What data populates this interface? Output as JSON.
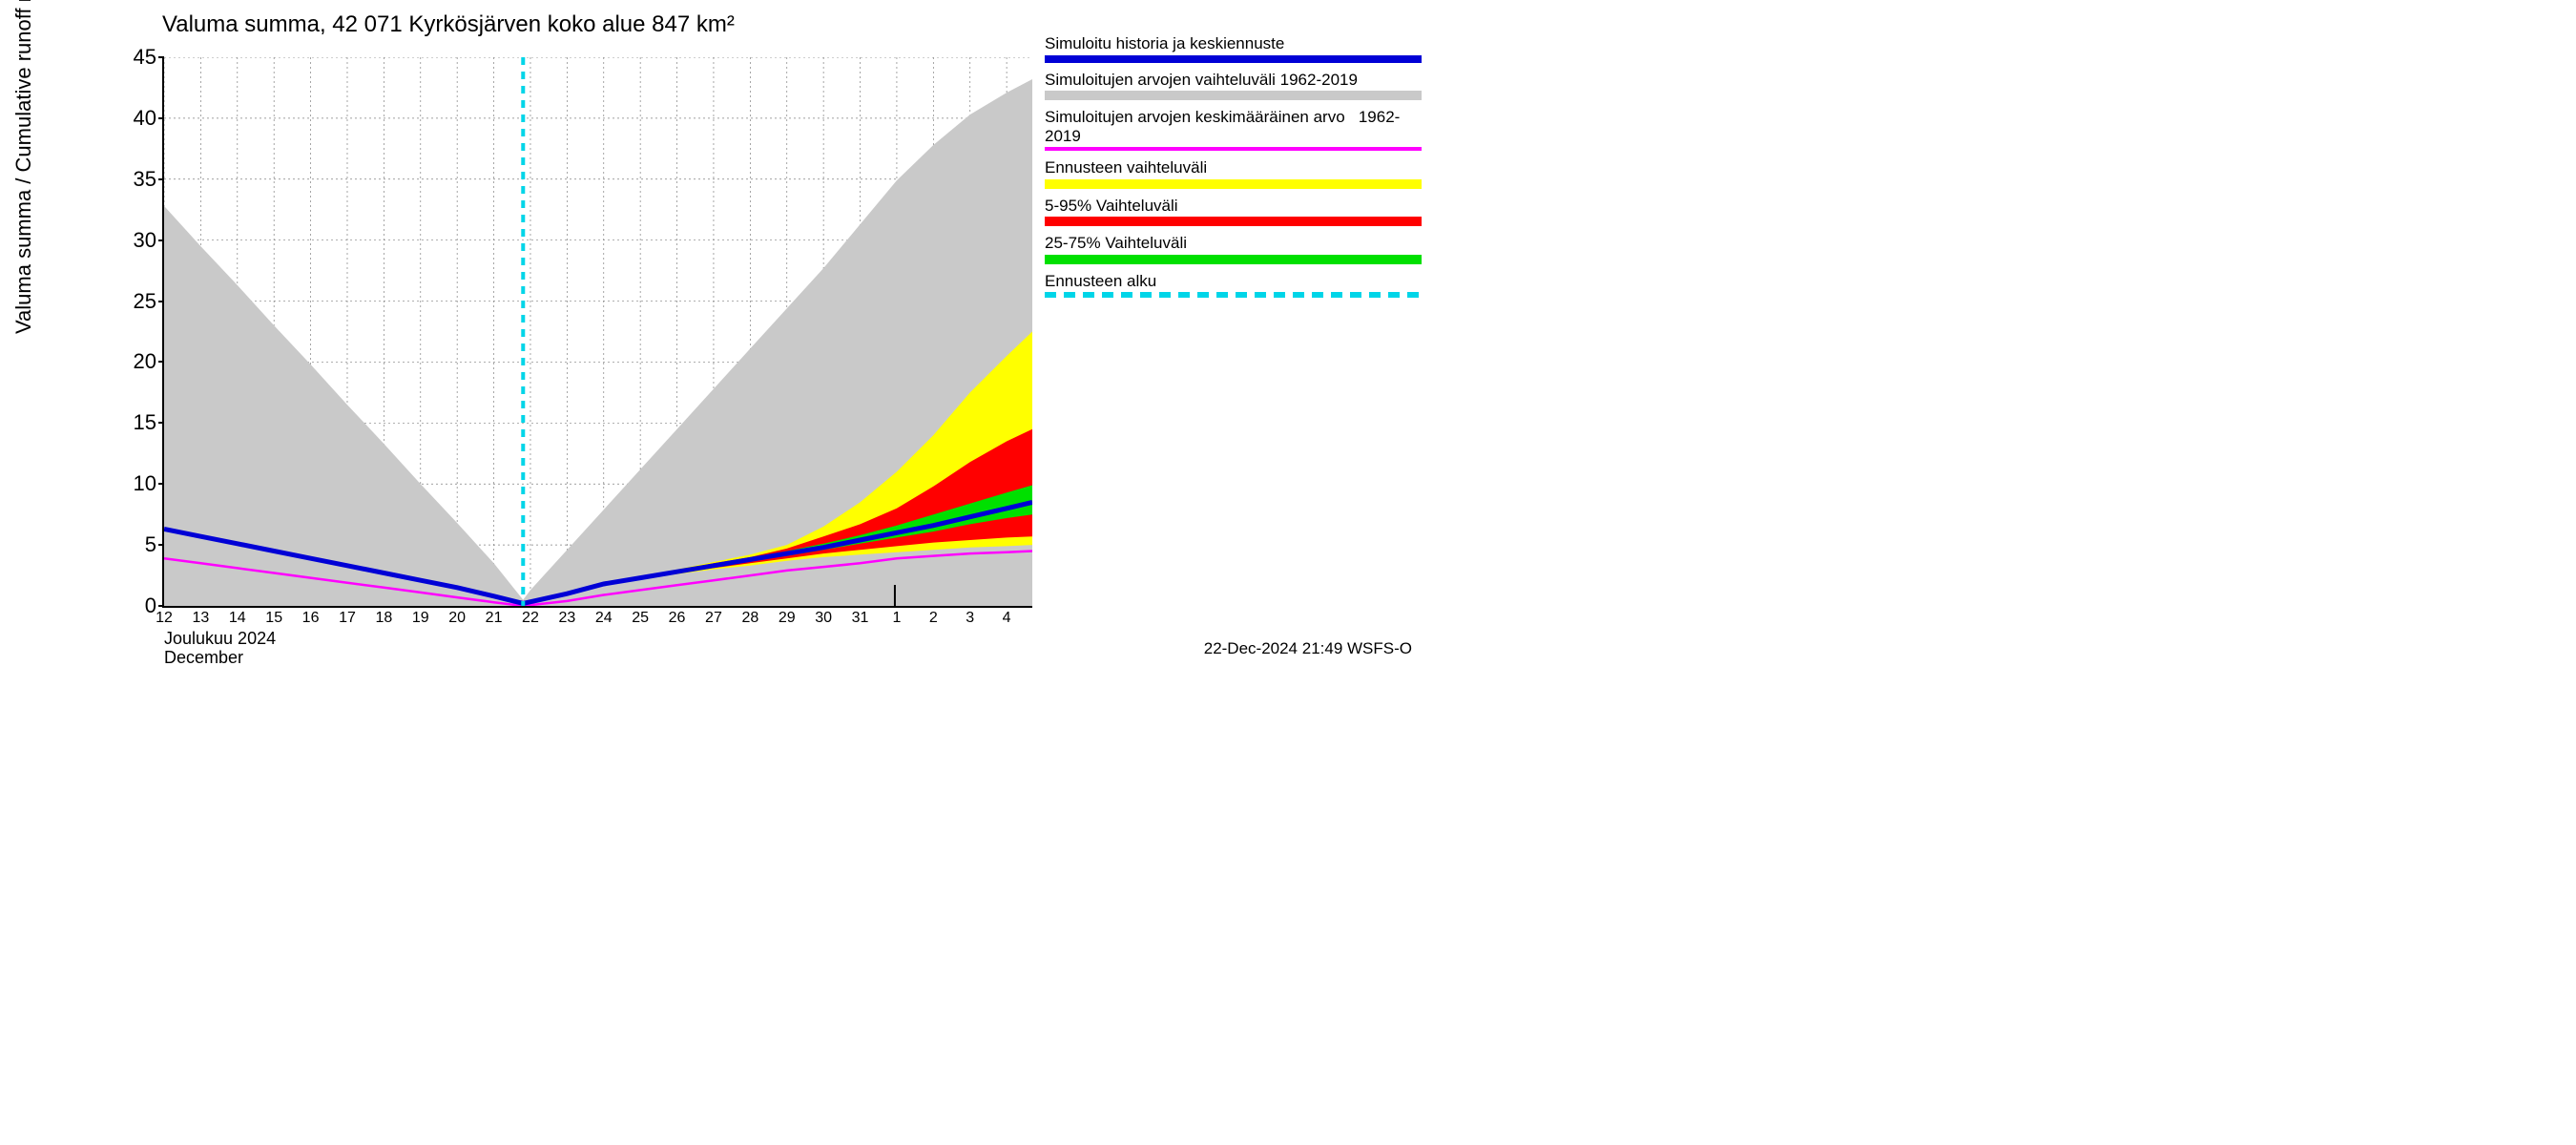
{
  "chart": {
    "type": "area-line",
    "title": "Valuma summa, 42 071 Kyrkösjärven koko alue 847 km²",
    "y_axis_label": "Valuma summa / Cumulative runoff     mm",
    "month_label_fi": "Joulukuu  2024",
    "month_label_en": "December",
    "background_color": "#ffffff",
    "grid_color": "#808080",
    "axis_color": "#000000",
    "title_fontsize": 24,
    "axis_label_fontsize": 22,
    "tick_fontsize_y": 22,
    "tick_fontsize_x": 16,
    "x": {
      "min": 12,
      "max": 35.7,
      "month_break": 32,
      "ticks": [
        12,
        13,
        14,
        15,
        16,
        17,
        18,
        19,
        20,
        21,
        22,
        23,
        24,
        25,
        26,
        27,
        28,
        29,
        30,
        31,
        32,
        33,
        34,
        35
      ],
      "tick_labels": [
        "12",
        "13",
        "14",
        "15",
        "16",
        "17",
        "18",
        "19",
        "20",
        "21",
        "22",
        "23",
        "24",
        "25",
        "26",
        "27",
        "28",
        "29",
        "30",
        "31",
        "1",
        "2",
        "3",
        "4"
      ]
    },
    "y": {
      "min": 0,
      "max": 45,
      "ticks": [
        0,
        5,
        10,
        15,
        20,
        25,
        30,
        35,
        40,
        45
      ]
    },
    "forecast_start_x": 21.8,
    "series": {
      "hist_range_upper": [
        {
          "x": 12,
          "y": 32.8
        },
        {
          "x": 13,
          "y": 29.5
        },
        {
          "x": 14,
          "y": 26.3
        },
        {
          "x": 15,
          "y": 23.0
        },
        {
          "x": 16,
          "y": 19.8
        },
        {
          "x": 17,
          "y": 16.5
        },
        {
          "x": 18,
          "y": 13.3
        },
        {
          "x": 19,
          "y": 10.0
        },
        {
          "x": 20,
          "y": 6.8
        },
        {
          "x": 21,
          "y": 3.5
        },
        {
          "x": 21.8,
          "y": 0.5
        },
        {
          "x": 22,
          "y": 1.3
        },
        {
          "x": 23,
          "y": 4.6
        },
        {
          "x": 24,
          "y": 7.9
        },
        {
          "x": 25,
          "y": 11.2
        },
        {
          "x": 26,
          "y": 14.5
        },
        {
          "x": 27,
          "y": 17.8
        },
        {
          "x": 28,
          "y": 21.1
        },
        {
          "x": 29,
          "y": 24.4
        },
        {
          "x": 30,
          "y": 27.7
        },
        {
          "x": 31,
          "y": 31.3
        },
        {
          "x": 32,
          "y": 34.9
        },
        {
          "x": 33,
          "y": 37.8
        },
        {
          "x": 34,
          "y": 40.3
        },
        {
          "x": 35,
          "y": 42.1
        },
        {
          "x": 35.7,
          "y": 43.2
        }
      ],
      "hist_range_lower": [
        {
          "x": 12,
          "y": 0
        },
        {
          "x": 35.7,
          "y": 0
        }
      ],
      "hist_mean": [
        {
          "x": 12,
          "y": 3.9
        },
        {
          "x": 13,
          "y": 3.5
        },
        {
          "x": 14,
          "y": 3.1
        },
        {
          "x": 15,
          "y": 2.7
        },
        {
          "x": 16,
          "y": 2.3
        },
        {
          "x": 17,
          "y": 1.9
        },
        {
          "x": 18,
          "y": 1.5
        },
        {
          "x": 19,
          "y": 1.1
        },
        {
          "x": 20,
          "y": 0.7
        },
        {
          "x": 21,
          "y": 0.3
        },
        {
          "x": 21.8,
          "y": 0.0
        },
        {
          "x": 23,
          "y": 0.4
        },
        {
          "x": 24,
          "y": 0.9
        },
        {
          "x": 25,
          "y": 1.3
        },
        {
          "x": 26,
          "y": 1.7
        },
        {
          "x": 27,
          "y": 2.1
        },
        {
          "x": 28,
          "y": 2.5
        },
        {
          "x": 29,
          "y": 2.9
        },
        {
          "x": 30,
          "y": 3.2
        },
        {
          "x": 31,
          "y": 3.5
        },
        {
          "x": 32,
          "y": 3.9
        },
        {
          "x": 33,
          "y": 4.1
        },
        {
          "x": 34,
          "y": 4.3
        },
        {
          "x": 35,
          "y": 4.4
        },
        {
          "x": 35.7,
          "y": 4.5
        }
      ],
      "simulated": [
        {
          "x": 12,
          "y": 6.3
        },
        {
          "x": 13,
          "y": 5.7
        },
        {
          "x": 14,
          "y": 5.1
        },
        {
          "x": 15,
          "y": 4.5
        },
        {
          "x": 16,
          "y": 3.9
        },
        {
          "x": 17,
          "y": 3.3
        },
        {
          "x": 18,
          "y": 2.7
        },
        {
          "x": 19,
          "y": 2.1
        },
        {
          "x": 20,
          "y": 1.5
        },
        {
          "x": 21,
          "y": 0.8
        },
        {
          "x": 21.8,
          "y": 0.2
        },
        {
          "x": 23,
          "y": 1.0
        },
        {
          "x": 24,
          "y": 1.8
        },
        {
          "x": 25,
          "y": 2.3
        },
        {
          "x": 26,
          "y": 2.8
        },
        {
          "x": 27,
          "y": 3.3
        },
        {
          "x": 28,
          "y": 3.8
        },
        {
          "x": 29,
          "y": 4.3
        },
        {
          "x": 30,
          "y": 4.8
        },
        {
          "x": 31,
          "y": 5.4
        },
        {
          "x": 32,
          "y": 6.0
        },
        {
          "x": 33,
          "y": 6.6
        },
        {
          "x": 34,
          "y": 7.3
        },
        {
          "x": 35,
          "y": 8.0
        },
        {
          "x": 35.7,
          "y": 8.5
        }
      ],
      "forecast_full_upper": [
        {
          "x": 21.8,
          "y": 0.2
        },
        {
          "x": 23,
          "y": 1.0
        },
        {
          "x": 24,
          "y": 1.8
        },
        {
          "x": 25,
          "y": 2.4
        },
        {
          "x": 26,
          "y": 3.0
        },
        {
          "x": 27,
          "y": 3.6
        },
        {
          "x": 28,
          "y": 4.2
        },
        {
          "x": 29,
          "y": 5.0
        },
        {
          "x": 30,
          "y": 6.5
        },
        {
          "x": 31,
          "y": 8.5
        },
        {
          "x": 32,
          "y": 11.0
        },
        {
          "x": 33,
          "y": 14.0
        },
        {
          "x": 34,
          "y": 17.5
        },
        {
          "x": 35,
          "y": 20.5
        },
        {
          "x": 35.7,
          "y": 22.5
        }
      ],
      "forecast_full_lower": [
        {
          "x": 21.8,
          "y": 0.2
        },
        {
          "x": 23,
          "y": 1.0
        },
        {
          "x": 24,
          "y": 1.7
        },
        {
          "x": 25,
          "y": 2.2
        },
        {
          "x": 26,
          "y": 2.6
        },
        {
          "x": 27,
          "y": 3.0
        },
        {
          "x": 28,
          "y": 3.3
        },
        {
          "x": 29,
          "y": 3.7
        },
        {
          "x": 30,
          "y": 4.0
        },
        {
          "x": 31,
          "y": 4.2
        },
        {
          "x": 32,
          "y": 4.4
        },
        {
          "x": 33,
          "y": 4.6
        },
        {
          "x": 34,
          "y": 4.8
        },
        {
          "x": 35,
          "y": 4.9
        },
        {
          "x": 35.7,
          "y": 5.0
        }
      ],
      "forecast_5_95_upper": [
        {
          "x": 21.8,
          "y": 0.2
        },
        {
          "x": 23,
          "y": 1.0
        },
        {
          "x": 24,
          "y": 1.8
        },
        {
          "x": 25,
          "y": 2.4
        },
        {
          "x": 26,
          "y": 2.9
        },
        {
          "x": 27,
          "y": 3.5
        },
        {
          "x": 28,
          "y": 4.0
        },
        {
          "x": 29,
          "y": 4.7
        },
        {
          "x": 30,
          "y": 5.7
        },
        {
          "x": 31,
          "y": 6.7
        },
        {
          "x": 32,
          "y": 8.0
        },
        {
          "x": 33,
          "y": 9.8
        },
        {
          "x": 34,
          "y": 11.8
        },
        {
          "x": 35,
          "y": 13.5
        },
        {
          "x": 35.7,
          "y": 14.5
        }
      ],
      "forecast_5_95_lower": [
        {
          "x": 21.8,
          "y": 0.2
        },
        {
          "x": 23,
          "y": 1.0
        },
        {
          "x": 24,
          "y": 1.7
        },
        {
          "x": 25,
          "y": 2.2
        },
        {
          "x": 26,
          "y": 2.7
        },
        {
          "x": 27,
          "y": 3.1
        },
        {
          "x": 28,
          "y": 3.5
        },
        {
          "x": 29,
          "y": 3.9
        },
        {
          "x": 30,
          "y": 4.3
        },
        {
          "x": 31,
          "y": 4.6
        },
        {
          "x": 32,
          "y": 4.9
        },
        {
          "x": 33,
          "y": 5.2
        },
        {
          "x": 34,
          "y": 5.4
        },
        {
          "x": 35,
          "y": 5.6
        },
        {
          "x": 35.7,
          "y": 5.7
        }
      ],
      "forecast_25_75_upper": [
        {
          "x": 21.8,
          "y": 0.2
        },
        {
          "x": 23,
          "y": 1.0
        },
        {
          "x": 24,
          "y": 1.8
        },
        {
          "x": 25,
          "y": 2.3
        },
        {
          "x": 26,
          "y": 2.8
        },
        {
          "x": 27,
          "y": 3.4
        },
        {
          "x": 28,
          "y": 3.9
        },
        {
          "x": 29,
          "y": 4.5
        },
        {
          "x": 30,
          "y": 5.1
        },
        {
          "x": 31,
          "y": 5.8
        },
        {
          "x": 32,
          "y": 6.6
        },
        {
          "x": 33,
          "y": 7.5
        },
        {
          "x": 34,
          "y": 8.4
        },
        {
          "x": 35,
          "y": 9.3
        },
        {
          "x": 35.7,
          "y": 9.9
        }
      ],
      "forecast_25_75_lower": [
        {
          "x": 21.8,
          "y": 0.2
        },
        {
          "x": 23,
          "y": 1.0
        },
        {
          "x": 24,
          "y": 1.8
        },
        {
          "x": 25,
          "y": 2.3
        },
        {
          "x": 26,
          "y": 2.8
        },
        {
          "x": 27,
          "y": 3.2
        },
        {
          "x": 28,
          "y": 3.7
        },
        {
          "x": 29,
          "y": 4.1
        },
        {
          "x": 30,
          "y": 4.6
        },
        {
          "x": 31,
          "y": 5.1
        },
        {
          "x": 32,
          "y": 5.6
        },
        {
          "x": 33,
          "y": 6.1
        },
        {
          "x": 34,
          "y": 6.7
        },
        {
          "x": 35,
          "y": 7.2
        },
        {
          "x": 35.7,
          "y": 7.5
        }
      ]
    },
    "colors": {
      "hist_range": "#c9c9c9",
      "hist_mean": "#ff00ff",
      "simulated": "#0000d6",
      "forecast_full": "#ffff00",
      "forecast_5_95": "#ff0000",
      "forecast_25_75": "#00e000",
      "forecast_start": "#00d5e8"
    },
    "line_widths": {
      "simulated": 5,
      "hist_mean": 2.5,
      "forecast_start": 4
    }
  },
  "legend": {
    "items": [
      {
        "label": "Simuloitu historia ja keskiennuste",
        "color": "#0000d6",
        "height": 8
      },
      {
        "label": "Simuloitujen arvojen vaihteluväli 1962-2019",
        "color": "#c9c9c9",
        "height": 10
      },
      {
        "label": "Simuloitujen arvojen keskimääräinen arvo   1962-2019",
        "color": "#ff00ff",
        "height": 4
      },
      {
        "label": "Ennusteen vaihteluväli",
        "color": "#ffff00",
        "height": 10
      },
      {
        "label": "5-95% Vaihteluväli",
        "color": "#ff0000",
        "height": 10
      },
      {
        "label": "25-75% Vaihteluväli",
        "color": "#00e000",
        "height": 10
      },
      {
        "label": "Ennusteen alku",
        "color": "#00d5e8",
        "height": 6,
        "dashed": true
      }
    ]
  },
  "footer": "22-Dec-2024 21:49 WSFS-O"
}
